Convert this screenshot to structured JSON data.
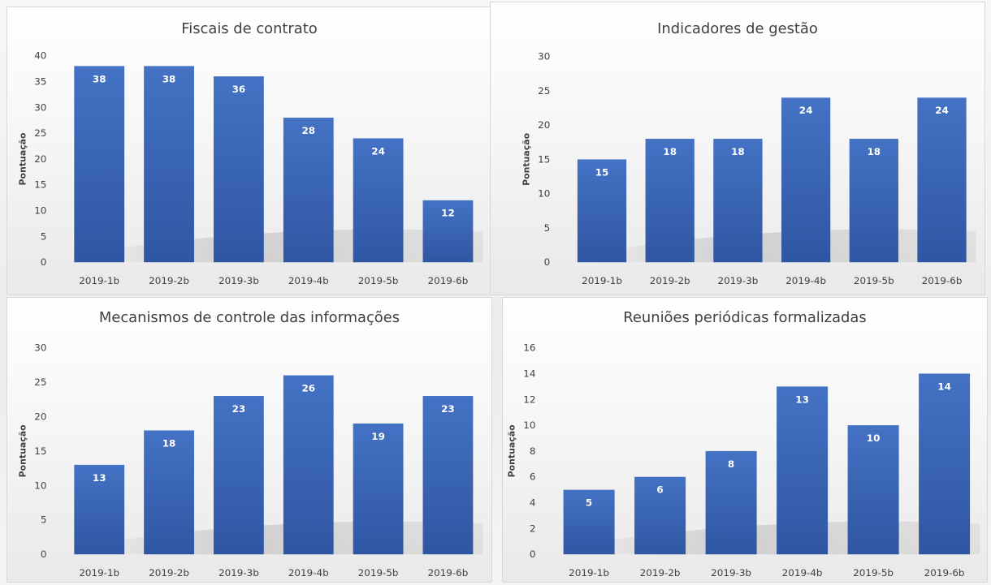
{
  "colors": {
    "bar_top": "#4472c4",
    "bar_bottom": "#2f56a3",
    "text": "#404040",
    "bar_label": "#ffffff"
  },
  "chart_data": [
    {
      "type": "bar",
      "title": "Fiscais de contrato",
      "ylabel": "Pontuação",
      "xlabel": "",
      "categories": [
        "2019-1b",
        "2019-2b",
        "2019-3b",
        "2019-4b",
        "2019-5b",
        "2019-6b"
      ],
      "values": [
        38,
        38,
        36,
        28,
        24,
        12
      ],
      "ylim": [
        0,
        40
      ],
      "yticks": [
        0,
        5,
        10,
        15,
        20,
        25,
        30,
        35,
        40
      ],
      "data_labels": true,
      "grid": false,
      "legend": "none"
    },
    {
      "type": "bar",
      "title": "Indicadores de gestão",
      "ylabel": "Pontuação",
      "xlabel": "",
      "categories": [
        "2019-1b",
        "2019-2b",
        "2019-3b",
        "2019-4b",
        "2019-5b",
        "2019-6b"
      ],
      "values": [
        15,
        18,
        18,
        24,
        18,
        24
      ],
      "ylim": [
        0,
        30
      ],
      "yticks": [
        0,
        5,
        10,
        15,
        20,
        25,
        30
      ],
      "data_labels": true,
      "grid": false,
      "legend": "none"
    },
    {
      "type": "bar",
      "title": "Mecanismos de controle das informações",
      "ylabel": "Pontuação",
      "xlabel": "",
      "categories": [
        "2019-1b",
        "2019-2b",
        "2019-3b",
        "2019-4b",
        "2019-5b",
        "2019-6b"
      ],
      "values": [
        13,
        18,
        23,
        26,
        19,
        23
      ],
      "ylim": [
        0,
        30
      ],
      "yticks": [
        0,
        5,
        10,
        15,
        20,
        25,
        30
      ],
      "data_labels": true,
      "grid": false,
      "legend": "none"
    },
    {
      "type": "bar",
      "title": "Reuniões periódicas formalizadas",
      "ylabel": "Pontuação",
      "xlabel": "",
      "categories": [
        "2019-1b",
        "2019-2b",
        "2019-3b",
        "2019-4b",
        "2019-5b",
        "2019-6b"
      ],
      "values": [
        5,
        6,
        8,
        13,
        10,
        14
      ],
      "ylim": [
        0,
        16
      ],
      "yticks": [
        0,
        2,
        4,
        6,
        8,
        10,
        12,
        14,
        16
      ],
      "data_labels": true,
      "grid": false,
      "legend": "none"
    }
  ]
}
